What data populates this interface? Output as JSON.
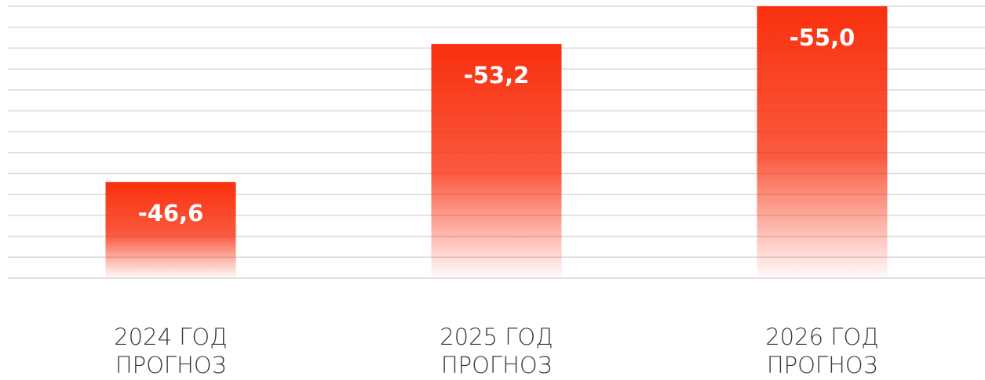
{
  "chart_data": {
    "type": "bar",
    "categories": [
      "2024 ГОД\nПРОГНОЗ",
      "2025 ГОД\nПРОГНОЗ",
      "2026 ГОД\nПРОГНОЗ"
    ],
    "values": [
      -46.6,
      -53.2,
      -55.0
    ],
    "value_labels": [
      "-46,6",
      "-53,2",
      "-55,0"
    ],
    "color": "#f9300e",
    "ylim": [
      -42,
      -55
    ],
    "yticks": [
      -42,
      -43,
      -44,
      -45,
      -46,
      -47,
      -48,
      -49,
      -50,
      -51,
      -52,
      -53,
      -54,
      -55
    ],
    "grid": true
  }
}
